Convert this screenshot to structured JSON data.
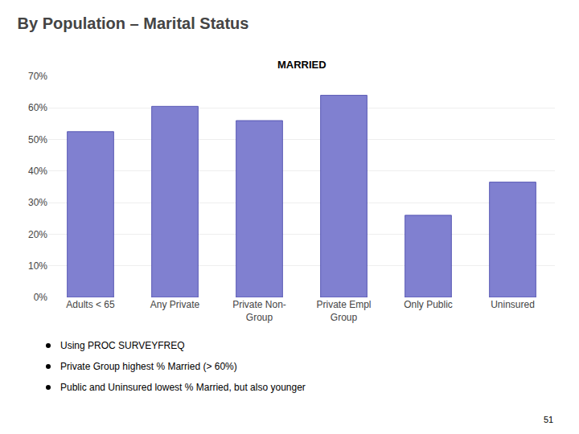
{
  "chart_data": {
    "type": "bar",
    "title": "By Population – Marital Status",
    "subtitle": "MARRIED",
    "categories": [
      "Adults < 65",
      "Any Private",
      "Private Non-\nGroup",
      "Private Empl\nGroup",
      "Only Public",
      "Uninsured"
    ],
    "values": [
      52.5,
      60.5,
      56.0,
      64.0,
      26.0,
      36.5
    ],
    "color": "#8080d0",
    "ylim": [
      0,
      70
    ],
    "yticks": [
      {
        "value": 0,
        "label": "0%"
      },
      {
        "value": 10,
        "label": "10%"
      },
      {
        "value": 20,
        "label": "20%"
      },
      {
        "value": 30,
        "label": "30%"
      },
      {
        "value": 40,
        "label": "40%"
      },
      {
        "value": 50,
        "label": "50%"
      },
      {
        "value": 60,
        "label": "60%"
      },
      {
        "value": 70,
        "label": "70%"
      }
    ],
    "grid": true,
    "annotations": [
      "Using PROC SURVEYFREQ",
      "Private Group highest % Married (> 60%)",
      "Public and Uninsured lowest % Married, but also younger"
    ],
    "page_number": "51"
  }
}
